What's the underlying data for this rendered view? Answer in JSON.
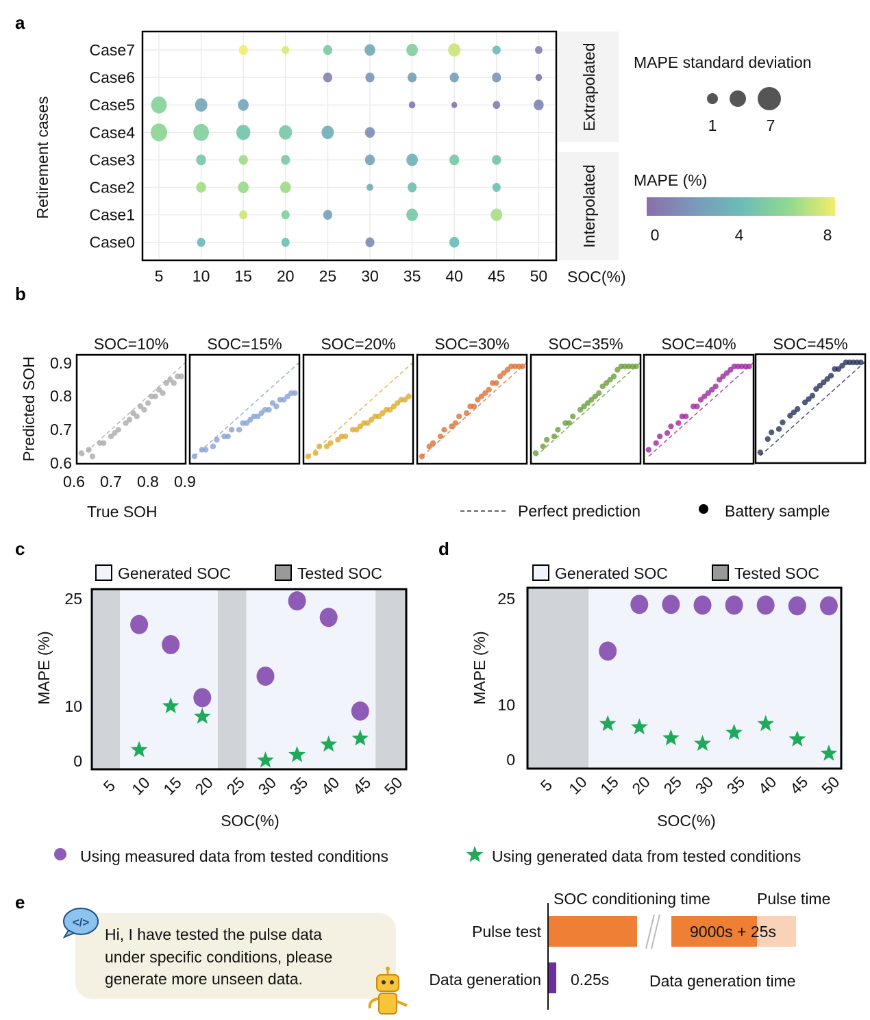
{
  "panels": {
    "a": "a",
    "b": "b",
    "c": "c",
    "d": "d",
    "e": "e"
  },
  "chart_data": [
    {
      "type": "scatter",
      "panel": "a",
      "ylabel": "Retirement cases",
      "xlabel": "SOC(%)",
      "x_ticks": [
        "5",
        "10",
        "15",
        "20",
        "25",
        "30",
        "35",
        "40",
        "45",
        "50"
      ],
      "y_categories": [
        "Case7",
        "Case6",
        "Case5",
        "Case4",
        "Case3",
        "Case2",
        "Case1",
        "Case0"
      ],
      "strips": [
        "Extrapolated",
        "Interpolated"
      ],
      "size_legend": {
        "title": "MAPE standard deviation",
        "min_label": "1",
        "max_label": "7"
      },
      "color_legend": {
        "title": "MAPE (%)",
        "ticks": [
          "0",
          "4",
          "8"
        ],
        "range": [
          0,
          8
        ],
        "colors": [
          "#8a6fab",
          "#7b98bb",
          "#6bbcb8",
          "#8fd98f",
          "#f2ed6a"
        ]
      },
      "grid": true,
      "points": [
        {
          "case": "Case7",
          "soc": 15,
          "mape": 8.0,
          "std": 3
        },
        {
          "case": "Case7",
          "soc": 20,
          "mape": 7.5,
          "std": 2
        },
        {
          "case": "Case7",
          "soc": 25,
          "mape": 5.0,
          "std": 3
        },
        {
          "case": "Case7",
          "soc": 30,
          "mape": 3.0,
          "std": 4
        },
        {
          "case": "Case7",
          "soc": 35,
          "mape": 5.3,
          "std": 4.5
        },
        {
          "case": "Case7",
          "soc": 40,
          "mape": 7.2,
          "std": 5
        },
        {
          "case": "Case7",
          "soc": 45,
          "mape": 4.0,
          "std": 2.5
        },
        {
          "case": "Case7",
          "soc": 50,
          "mape": 1.0,
          "std": 2
        },
        {
          "case": "Case6",
          "soc": 25,
          "mape": 1.0,
          "std": 3
        },
        {
          "case": "Case6",
          "soc": 30,
          "mape": 2.0,
          "std": 3
        },
        {
          "case": "Case6",
          "soc": 35,
          "mape": 2.5,
          "std": 3
        },
        {
          "case": "Case6",
          "soc": 40,
          "mape": 2.5,
          "std": 3
        },
        {
          "case": "Case6",
          "soc": 45,
          "mape": 2.0,
          "std": 3
        },
        {
          "case": "Case6",
          "soc": 50,
          "mape": 0.5,
          "std": 1.5
        },
        {
          "case": "Case5",
          "soc": 5,
          "mape": 5.5,
          "std": 7
        },
        {
          "case": "Case5",
          "soc": 10,
          "mape": 2.8,
          "std": 5
        },
        {
          "case": "Case5",
          "soc": 15,
          "mape": 2.8,
          "std": 4
        },
        {
          "case": "Case5",
          "soc": 35,
          "mape": 0.5,
          "std": 1.5
        },
        {
          "case": "Case5",
          "soc": 40,
          "mape": 0.3,
          "std": 1
        },
        {
          "case": "Case5",
          "soc": 45,
          "mape": 0.8,
          "std": 2
        },
        {
          "case": "Case5",
          "soc": 50,
          "mape": 1.0,
          "std": 3.5
        },
        {
          "case": "Case4",
          "soc": 5,
          "mape": 5.8,
          "std": 7.5
        },
        {
          "case": "Case4",
          "soc": 10,
          "mape": 5.3,
          "std": 7
        },
        {
          "case": "Case4",
          "soc": 15,
          "mape": 4.5,
          "std": 6
        },
        {
          "case": "Case4",
          "soc": 20,
          "mape": 4.8,
          "std": 5.5
        },
        {
          "case": "Case4",
          "soc": 25,
          "mape": 3.3,
          "std": 5
        },
        {
          "case": "Case4",
          "soc": 30,
          "mape": 1.5,
          "std": 3.5
        },
        {
          "case": "Case3",
          "soc": 10,
          "mape": 4.8,
          "std": 3.5
        },
        {
          "case": "Case3",
          "soc": 15,
          "mape": 6.3,
          "std": 3
        },
        {
          "case": "Case3",
          "soc": 20,
          "mape": 5.0,
          "std": 3
        },
        {
          "case": "Case3",
          "soc": 30,
          "mape": 2.7,
          "std": 3.5
        },
        {
          "case": "Case3",
          "soc": 35,
          "mape": 3.5,
          "std": 4.5
        },
        {
          "case": "Case3",
          "soc": 40,
          "mape": 4.8,
          "std": 3.5
        },
        {
          "case": "Case3",
          "soc": 45,
          "mape": 4.5,
          "std": 3
        },
        {
          "case": "Case2",
          "soc": 10,
          "mape": 6.4,
          "std": 3.5
        },
        {
          "case": "Case2",
          "soc": 15,
          "mape": 6.2,
          "std": 4
        },
        {
          "case": "Case2",
          "soc": 20,
          "mape": 6.3,
          "std": 4
        },
        {
          "case": "Case2",
          "soc": 30,
          "mape": 3.2,
          "std": 1.5
        },
        {
          "case": "Case2",
          "soc": 35,
          "mape": 4.2,
          "std": 3
        },
        {
          "case": "Case2",
          "soc": 45,
          "mape": 4.2,
          "std": 2.5
        },
        {
          "case": "Case1",
          "soc": 15,
          "mape": 7.3,
          "std": 2.5
        },
        {
          "case": "Case1",
          "soc": 20,
          "mape": 5.3,
          "std": 2.5
        },
        {
          "case": "Case1",
          "soc": 25,
          "mape": 2.5,
          "std": 3
        },
        {
          "case": "Case1",
          "soc": 35,
          "mape": 4.8,
          "std": 4.5
        },
        {
          "case": "Case1",
          "soc": 45,
          "mape": 6.5,
          "std": 4.5
        },
        {
          "case": "Case0",
          "soc": 10,
          "mape": 3.8,
          "std": 2.5
        },
        {
          "case": "Case0",
          "soc": 20,
          "mape": 4.2,
          "std": 2.5
        },
        {
          "case": "Case0",
          "soc": 30,
          "mape": 1.5,
          "std": 3
        },
        {
          "case": "Case0",
          "soc": 40,
          "mape": 4.0,
          "std": 3.5
        }
      ]
    },
    {
      "type": "scatter",
      "panel": "b",
      "ylabel": "Predicted SOH",
      "xlabel": "True SOH",
      "xlim": [
        0.6,
        0.9
      ],
      "ylim": [
        0.6,
        0.9
      ],
      "x_ticks": [
        "0.6",
        "0.7",
        "0.8",
        "0.9"
      ],
      "y_ticks": [
        "0.9",
        "0.8",
        "0.7",
        "0.6"
      ],
      "legend": {
        "line": "Perfect prediction",
        "marker": "Battery sample"
      },
      "true_soh": [
        0.62,
        0.64,
        0.65,
        0.67,
        0.68,
        0.7,
        0.71,
        0.72,
        0.74,
        0.75,
        0.76,
        0.77,
        0.78,
        0.79,
        0.8,
        0.81,
        0.82,
        0.83,
        0.84,
        0.85,
        0.86,
        0.87,
        0.88,
        0.89
      ],
      "subplots": [
        {
          "title": "SOC=10%",
          "color": "#aaaaaa",
          "predicted": [
            0.63,
            0.64,
            0.62,
            0.66,
            0.66,
            0.68,
            0.69,
            0.7,
            0.72,
            0.73,
            0.75,
            0.74,
            0.77,
            0.76,
            0.78,
            0.8,
            0.8,
            0.82,
            0.81,
            0.84,
            0.85,
            0.84,
            0.86,
            0.86
          ]
        },
        {
          "title": "SOC=15%",
          "color": "#86a0d6",
          "predicted": [
            0.62,
            0.64,
            0.64,
            0.65,
            0.67,
            0.68,
            0.68,
            0.7,
            0.7,
            0.72,
            0.72,
            0.73,
            0.74,
            0.74,
            0.75,
            0.76,
            0.76,
            0.78,
            0.77,
            0.79,
            0.79,
            0.8,
            0.81,
            0.81
          ]
        },
        {
          "title": "SOC=20%",
          "color": "#dfaa2c",
          "predicted": [
            0.62,
            0.63,
            0.65,
            0.65,
            0.66,
            0.67,
            0.68,
            0.68,
            0.7,
            0.7,
            0.71,
            0.72,
            0.72,
            0.73,
            0.74,
            0.74,
            0.75,
            0.76,
            0.76,
            0.77,
            0.78,
            0.79,
            0.79,
            0.8
          ]
        },
        {
          "title": "SOC=30%",
          "color": "#d9733a",
          "predicted": [
            0.62,
            0.65,
            0.66,
            0.68,
            0.7,
            0.71,
            0.72,
            0.74,
            0.75,
            0.77,
            0.77,
            0.79,
            0.8,
            0.81,
            0.82,
            0.84,
            0.84,
            0.86,
            0.87,
            0.88,
            0.89,
            0.89,
            0.89,
            0.89
          ]
        },
        {
          "title": "SOC=35%",
          "color": "#6a9e3a",
          "predicted": [
            0.63,
            0.65,
            0.67,
            0.68,
            0.7,
            0.72,
            0.72,
            0.74,
            0.76,
            0.77,
            0.78,
            0.79,
            0.8,
            0.81,
            0.83,
            0.84,
            0.85,
            0.86,
            0.88,
            0.89,
            0.89,
            0.89,
            0.89,
            0.89
          ]
        },
        {
          "title": "SOC=40%",
          "color": "#9b2a9e",
          "predicted": [
            0.64,
            0.66,
            0.68,
            0.69,
            0.71,
            0.72,
            0.74,
            0.74,
            0.77,
            0.77,
            0.79,
            0.8,
            0.81,
            0.82,
            0.83,
            0.85,
            0.86,
            0.87,
            0.88,
            0.89,
            0.89,
            0.89,
            0.89,
            0.89
          ]
        },
        {
          "title": "SOC=45%",
          "color": "#26335a",
          "predicted": [
            0.63,
            0.67,
            0.69,
            0.7,
            0.72,
            0.74,
            0.75,
            0.76,
            0.78,
            0.79,
            0.8,
            0.82,
            0.83,
            0.84,
            0.85,
            0.86,
            0.88,
            0.88,
            0.89,
            0.9,
            0.9,
            0.9,
            0.9,
            0.9
          ]
        }
      ]
    },
    {
      "type": "scatter",
      "panel": "c",
      "ylabel": "MAPE (%)",
      "xlabel": "SOC(%)",
      "y_ticks": [
        "25",
        "10",
        "0"
      ],
      "categories": [
        "5",
        "10",
        "15",
        "20",
        "25",
        "30",
        "35",
        "40",
        "45",
        "50"
      ],
      "tested_soc": [
        "5",
        "25",
        "50"
      ],
      "legend": [
        "Generated SOC",
        "Tested SOC"
      ],
      "series": [
        {
          "name": "Using measured data from tested conditions",
          "marker": "circle",
          "color": "#8e5bb7",
          "x": [
            10,
            15,
            20,
            30,
            35,
            40,
            45
          ],
          "y": [
            21.3,
            18.5,
            11.1,
            14.1,
            24.6,
            22.3,
            9.0
          ]
        },
        {
          "name": "Using generated data from tested conditions",
          "marker": "star",
          "color": "#1fa95a",
          "x": [
            10,
            15,
            20,
            30,
            35,
            40,
            45
          ],
          "y": [
            1.9,
            9.9,
            8.0,
            0.0,
            1.0,
            2.9,
            4.0
          ]
        }
      ]
    },
    {
      "type": "scatter",
      "panel": "d",
      "ylabel": "MAPE (%)",
      "xlabel": "SOC(%)",
      "y_ticks": [
        "25",
        "10",
        "0"
      ],
      "categories": [
        "5",
        "10",
        "15",
        "20",
        "25",
        "30",
        "35",
        "40",
        "45",
        "50"
      ],
      "tested_soc": [
        "5",
        "10"
      ],
      "legend": [
        "Generated SOC",
        "Tested SOC"
      ],
      "series": [
        {
          "name": "Using measured data from tested conditions",
          "marker": "circle",
          "color": "#8e5bb7",
          "x": [
            15,
            20,
            25,
            30,
            35,
            40,
            45,
            50
          ],
          "y": [
            17.5,
            24.1,
            24.1,
            24.0,
            24.0,
            24.0,
            23.9,
            23.9
          ]
        },
        {
          "name": "Using generated data from tested conditions",
          "marker": "star",
          "color": "#1fa95a",
          "x": [
            15,
            20,
            25,
            30,
            35,
            40,
            45,
            50
          ],
          "y": [
            6.4,
            5.8,
            3.8,
            2.8,
            4.8,
            6.4,
            3.6,
            1.0
          ]
        }
      ]
    },
    {
      "type": "bar",
      "panel": "e",
      "categories": [
        "Pulse test",
        "Data generation"
      ],
      "header_labels": [
        "SOC conditioning time",
        "Pulse time"
      ],
      "pulse_label": "9000s + 25s",
      "generation_label": "0.25s",
      "generation_caption": "Data generation time",
      "values_s": {
        "soc_conditioning": 9000,
        "pulse": 25,
        "generation": 0.25
      },
      "colors": {
        "conditioning": "#ee7f35",
        "pulse": "#f9d2b8",
        "generation": "#6a2ea0"
      }
    }
  ],
  "legend_bottom": {
    "measured": "Using measured data from tested conditions",
    "generated": "Using generated data from tested conditions"
  },
  "chat": {
    "lines": [
      "Hi, I have tested the pulse data",
      "under specific conditions, please",
      "generate more unseen data."
    ],
    "icons": [
      "code-chat-icon",
      "robot-icon"
    ]
  }
}
